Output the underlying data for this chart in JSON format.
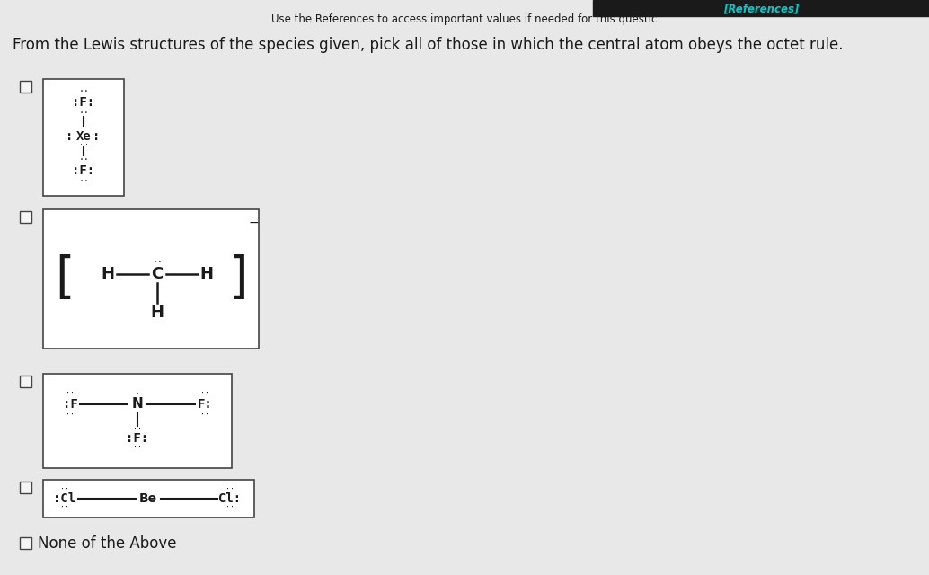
{
  "bg_color": "#e8e8e8",
  "text_color": "#1a1a1a",
  "box_edge_color": "#444444",
  "ref_bar_color": "#1a1a1a",
  "ref_text_color": "#00cccc",
  "ref_bar": "[References]",
  "use_ref_line": "Use the References to access important values if needed for this questic",
  "main_q": "From the Lewis structures of the species given, pick all of those in which the central atom obeys the octet rule.",
  "none_label": "None of the Above",
  "figsize": [
    10.34,
    6.4
  ],
  "dpi": 100
}
